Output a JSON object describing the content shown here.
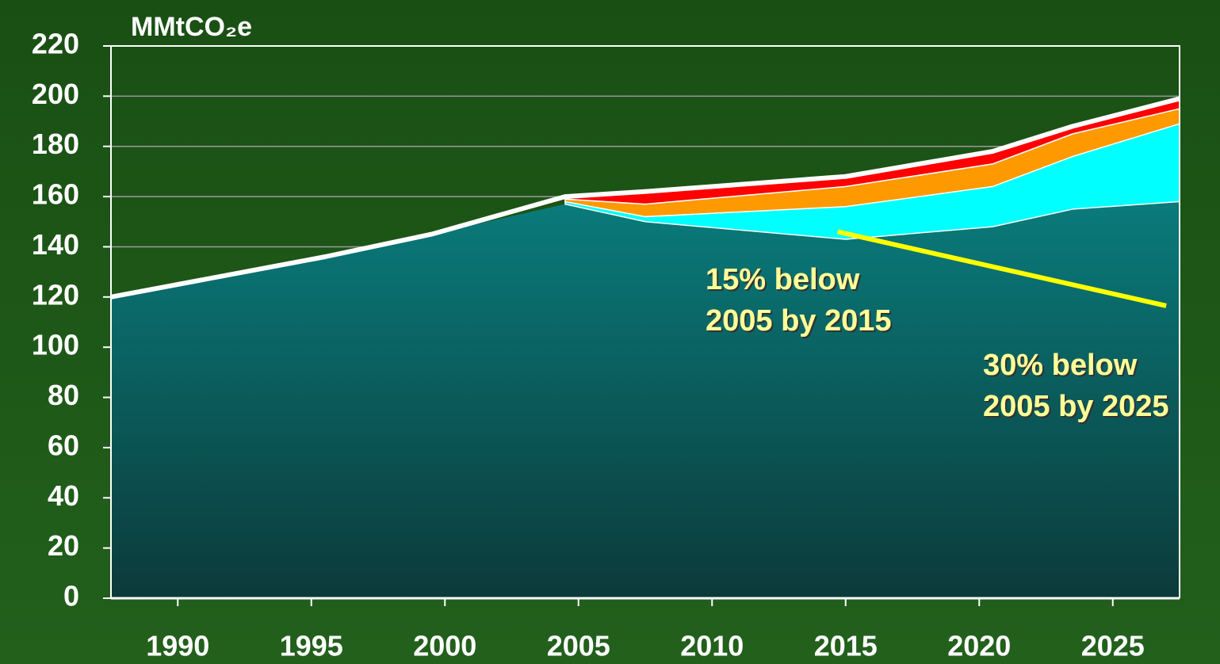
{
  "chart_data": {
    "type": "stacked_area",
    "ylabel": "MMtCO₂e",
    "x": [
      1987.5,
      1995.5,
      1999.5,
      2004.5,
      2007.5,
      2015,
      2020.5,
      2023.5,
      2027.5
    ],
    "series": [
      {
        "color": "#0a7b7b",
        "values": [
          120,
          136,
          145,
          157,
          150,
          143,
          148,
          155,
          158
        ]
      },
      {
        "color": "#00ffff",
        "values": [
          null,
          null,
          null,
          1,
          2,
          13,
          16,
          21,
          31
        ]
      },
      {
        "color": "#ff9900",
        "values": [
          null,
          null,
          null,
          1,
          5,
          8,
          9,
          9,
          6
        ]
      },
      {
        "color": "#ff0000",
        "values": [
          null,
          null,
          null,
          1,
          5,
          4,
          5,
          3,
          4
        ]
      }
    ],
    "target_line": {
      "color": "#ffff00",
      "x": [
        2014.7,
        2027
      ],
      "values": [
        146,
        116.5
      ]
    },
    "annotations": [
      "15% below",
      "2005 by 2015",
      "30% below",
      "2005 by 2025"
    ],
    "xlim": [
      1987.5,
      2027.5
    ],
    "xticks": [
      1990,
      1995,
      2000,
      2005,
      2010,
      2015,
      2020,
      2025
    ],
    "ylim": [
      0,
      220
    ],
    "yticks": [
      0,
      20,
      40,
      60,
      80,
      100,
      120,
      140,
      160,
      180,
      200,
      220
    ],
    "grid": true
  }
}
